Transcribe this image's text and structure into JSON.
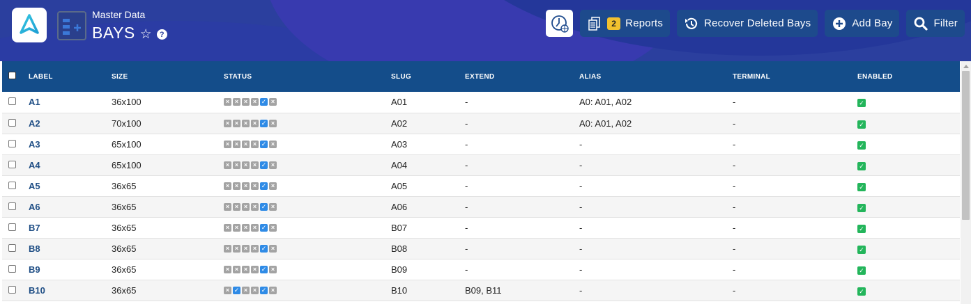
{
  "header": {
    "breadcrumb": "Master Data",
    "title": "BAYS",
    "star_icon": "star-outline-icon",
    "help_icon": "question-circle-icon"
  },
  "toolbar": {
    "reports_count": "2",
    "reports_label": "Reports",
    "recover_label": "Recover Deleted Bays",
    "add_label": "Add Bay",
    "filter_label": "Filter"
  },
  "colors": {
    "header_bg": "#2b3f9e",
    "table_header_bg": "#144d8a",
    "button_bg": "#1d4a8c",
    "badge": "#f2c12e",
    "status_on": "#2f8be6",
    "status_off": "#a3a3a3",
    "enabled": "#23b55b"
  },
  "columns": {
    "label": "LABEL",
    "size": "SIZE",
    "status": "STATUS",
    "slug": "SLUG",
    "extend": "EXTEND",
    "alias": "ALIAS",
    "terminal": "TERMINAL",
    "enabled": "ENABLED"
  },
  "rows": [
    {
      "label": "A1",
      "size": "36x100",
      "status": [
        0,
        0,
        0,
        0,
        1,
        0
      ],
      "slug": "A01",
      "extend": "-",
      "alias": "A0: A01, A02",
      "terminal": "-",
      "enabled": true
    },
    {
      "label": "A2",
      "size": "70x100",
      "status": [
        0,
        0,
        0,
        0,
        1,
        0
      ],
      "slug": "A02",
      "extend": "-",
      "alias": "A0: A01, A02",
      "terminal": "-",
      "enabled": true
    },
    {
      "label": "A3",
      "size": "65x100",
      "status": [
        0,
        0,
        0,
        0,
        1,
        0
      ],
      "slug": "A03",
      "extend": "-",
      "alias": "-",
      "terminal": "-",
      "enabled": true
    },
    {
      "label": "A4",
      "size": "65x100",
      "status": [
        0,
        0,
        0,
        0,
        1,
        0
      ],
      "slug": "A04",
      "extend": "-",
      "alias": "-",
      "terminal": "-",
      "enabled": true
    },
    {
      "label": "A5",
      "size": "36x65",
      "status": [
        0,
        0,
        0,
        0,
        1,
        0
      ],
      "slug": "A05",
      "extend": "-",
      "alias": "-",
      "terminal": "-",
      "enabled": true
    },
    {
      "label": "A6",
      "size": "36x65",
      "status": [
        0,
        0,
        0,
        0,
        1,
        0
      ],
      "slug": "A06",
      "extend": "-",
      "alias": "-",
      "terminal": "-",
      "enabled": true
    },
    {
      "label": "B7",
      "size": "36x65",
      "status": [
        0,
        0,
        0,
        0,
        1,
        0
      ],
      "slug": "B07",
      "extend": "-",
      "alias": "-",
      "terminal": "-",
      "enabled": true
    },
    {
      "label": "B8",
      "size": "36x65",
      "status": [
        0,
        0,
        0,
        0,
        1,
        0
      ],
      "slug": "B08",
      "extend": "-",
      "alias": "-",
      "terminal": "-",
      "enabled": true
    },
    {
      "label": "B9",
      "size": "36x65",
      "status": [
        0,
        0,
        0,
        0,
        1,
        0
      ],
      "slug": "B09",
      "extend": "-",
      "alias": "-",
      "terminal": "-",
      "enabled": true
    },
    {
      "label": "B10",
      "size": "36x65",
      "status": [
        0,
        1,
        0,
        0,
        1,
        0
      ],
      "slug": "B10",
      "extend": "B09, B11",
      "alias": "-",
      "terminal": "-",
      "enabled": true
    }
  ]
}
